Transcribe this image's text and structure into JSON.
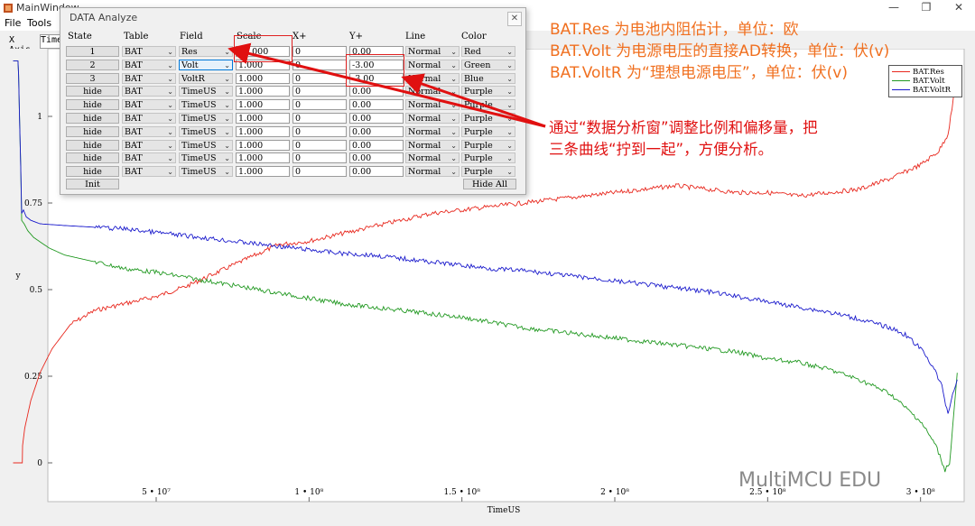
{
  "window": {
    "title": "MainWindow",
    "controls": [
      "—",
      "❐",
      "✕"
    ]
  },
  "menu": {
    "file": "File",
    "tools": "Tools"
  },
  "xaxis_bar": {
    "label": "X Axis",
    "value": "TimeU"
  },
  "dialog": {
    "title": "DATA Analyze",
    "close": "✕",
    "headers": {
      "state": "State",
      "table": "Table",
      "field": "Field",
      "scale": "Scale",
      "xplus": "X+",
      "yplus": "Y+",
      "line": "Line",
      "color": "Color"
    },
    "rows": [
      {
        "state": "1",
        "table": "BAT",
        "field": "Res",
        "scale": "10.000",
        "x": "0",
        "y": "0.00",
        "line": "Normal",
        "color": "Red"
      },
      {
        "state": "2",
        "table": "BAT",
        "field": "Volt",
        "scale": "1.000",
        "x": "0",
        "y": "-3.00",
        "line": "Normal",
        "color": "Green"
      },
      {
        "state": "3",
        "table": "BAT",
        "field": "VoltR",
        "scale": "1.000",
        "x": "0",
        "y": "-3.00",
        "line": "Normal",
        "color": "Blue"
      },
      {
        "state": "hide",
        "table": "BAT",
        "field": "TimeUS",
        "scale": "1.000",
        "x": "0",
        "y": "0.00",
        "line": "Normal",
        "color": "Purple"
      },
      {
        "state": "hide",
        "table": "BAT",
        "field": "TimeUS",
        "scale": "1.000",
        "x": "0",
        "y": "0.00",
        "line": "Normal",
        "color": "Purple"
      },
      {
        "state": "hide",
        "table": "BAT",
        "field": "TimeUS",
        "scale": "1.000",
        "x": "0",
        "y": "0.00",
        "line": "Normal",
        "color": "Purple"
      },
      {
        "state": "hide",
        "table": "BAT",
        "field": "TimeUS",
        "scale": "1.000",
        "x": "0",
        "y": "0.00",
        "line": "Normal",
        "color": "Purple"
      },
      {
        "state": "hide",
        "table": "BAT",
        "field": "TimeUS",
        "scale": "1.000",
        "x": "0",
        "y": "0.00",
        "line": "Normal",
        "color": "Purple"
      },
      {
        "state": "hide",
        "table": "BAT",
        "field": "TimeUS",
        "scale": "1.000",
        "x": "0",
        "y": "0.00",
        "line": "Normal",
        "color": "Purple"
      },
      {
        "state": "hide",
        "table": "BAT",
        "field": "TimeUS",
        "scale": "1.000",
        "x": "0",
        "y": "0.00",
        "line": "Normal",
        "color": "Purple"
      }
    ],
    "init_button": "Init",
    "hide_all_button": "Hide All"
  },
  "annotations": {
    "line1": "BAT.Res 为电池内阻估计，单位：欧",
    "line2": "BAT.Volt 为电源电压的直接AD转换，单位：伏(v)",
    "line3": "BAT.VoltR 为“理想电源电压”，单位：伏(v)",
    "note1": "通过“数据分析窗”调整比例和偏移量，把",
    "note2": "三条曲线“拧到一起”，方便分析。"
  },
  "watermark": "MultiMCU EDU",
  "colors": {
    "res": "#e8281e",
    "volt": "#229922",
    "voltr": "#1a1acc",
    "annotation": "#f07020",
    "arrow": "#e01010"
  },
  "chart_data": {
    "type": "line",
    "xlabel": "TimeUS",
    "ylabel": "y",
    "xlim": [
      0,
      318000000
    ],
    "ylim": [
      -0.15,
      1.22
    ],
    "x_ticks": [
      {
        "v": 50000000,
        "label": "5 • 10⁷"
      },
      {
        "v": 100000000,
        "label": "1 • 10⁸"
      },
      {
        "v": 150000000,
        "label": "1.5 • 10⁸"
      },
      {
        "v": 200000000,
        "label": "2 • 10⁸"
      },
      {
        "v": 250000000,
        "label": "2.5 • 10⁸"
      },
      {
        "v": 300000000,
        "label": "3 • 10⁸"
      }
    ],
    "y_ticks": [
      {
        "v": 0,
        "label": "0"
      },
      {
        "v": 0.25,
        "label": "0.25"
      },
      {
        "v": 0.5,
        "label": "0.5"
      },
      {
        "v": 0.75,
        "label": "0.75"
      },
      {
        "v": 1,
        "label": "1"
      }
    ],
    "legend": "top-right",
    "series": [
      {
        "name": "BAT.Res",
        "color": "#e8281e",
        "x": [
          3200000,
          6200000,
          6300000,
          7000000,
          9000000,
          12000000,
          16000000,
          22000000,
          30000000,
          40000000,
          50000000,
          60000000,
          70000000,
          80000000,
          90000000,
          100000000,
          110000000,
          120000000,
          130000000,
          140000000,
          150000000,
          160000000,
          170000000,
          180000000,
          190000000,
          200000000,
          210000000,
          220000000,
          230000000,
          240000000,
          250000000,
          260000000,
          270000000,
          280000000,
          290000000,
          300000000,
          306000000,
          309000000,
          312000000
        ],
        "y": [
          0,
          0,
          0.05,
          0.1,
          0.18,
          0.26,
          0.33,
          0.4,
          0.44,
          0.46,
          0.48,
          0.51,
          0.55,
          0.59,
          0.63,
          0.64,
          0.66,
          0.68,
          0.7,
          0.72,
          0.73,
          0.74,
          0.75,
          0.76,
          0.77,
          0.78,
          0.79,
          0.8,
          0.79,
          0.78,
          0.78,
          0.77,
          0.78,
          0.79,
          0.82,
          0.86,
          0.9,
          0.95,
          1.12
        ]
      },
      {
        "name": "BAT.Volt",
        "color": "#229922",
        "x": [
          3200000,
          4800000,
          5000000,
          5300000,
          5700000,
          6000000,
          6800000,
          8000000,
          10000000,
          15000000,
          20000000,
          30000000,
          40000000,
          50000000,
          60000000,
          70000000,
          80000000,
          90000000,
          100000000,
          110000000,
          120000000,
          130000000,
          140000000,
          150000000,
          160000000,
          170000000,
          180000000,
          190000000,
          200000000,
          210000000,
          220000000,
          230000000,
          240000000,
          250000000,
          260000000,
          270000000,
          280000000,
          290000000,
          300000000,
          305000000,
          308000000,
          309500000,
          310500000,
          312000000
        ],
        "y": [
          1.16,
          1.16,
          1.12,
          1.0,
          0.85,
          0.7,
          0.69,
          0.67,
          0.65,
          0.62,
          0.6,
          0.58,
          0.56,
          0.55,
          0.535,
          0.52,
          0.505,
          0.49,
          0.475,
          0.46,
          0.45,
          0.44,
          0.43,
          0.42,
          0.405,
          0.39,
          0.38,
          0.37,
          0.36,
          0.35,
          0.34,
          0.33,
          0.32,
          0.3,
          0.29,
          0.27,
          0.24,
          0.2,
          0.12,
          0.05,
          -0.02,
          0,
          0.1,
          0.26
        ]
      },
      {
        "name": "BAT.VoltR",
        "color": "#1a1acc",
        "x": [
          3200000,
          4800000,
          5000000,
          5300000,
          5700000,
          6000000,
          6600000,
          7500000,
          9000000,
          12000000,
          20000000,
          30000000,
          40000000,
          50000000,
          60000000,
          70000000,
          80000000,
          90000000,
          100000000,
          110000000,
          120000000,
          130000000,
          140000000,
          150000000,
          160000000,
          170000000,
          180000000,
          190000000,
          200000000,
          210000000,
          220000000,
          230000000,
          240000000,
          250000000,
          260000000,
          270000000,
          280000000,
          290000000,
          295000000,
          300000000,
          304000000,
          307000000,
          309000000,
          310500000,
          312000000
        ],
        "y": [
          1.16,
          1.16,
          1.12,
          1.0,
          0.85,
          0.72,
          0.73,
          0.71,
          0.7,
          0.69,
          0.685,
          0.68,
          0.675,
          0.665,
          0.655,
          0.645,
          0.635,
          0.625,
          0.615,
          0.605,
          0.6,
          0.59,
          0.58,
          0.57,
          0.56,
          0.555,
          0.545,
          0.535,
          0.525,
          0.515,
          0.505,
          0.495,
          0.48,
          0.465,
          0.45,
          0.435,
          0.415,
          0.39,
          0.37,
          0.33,
          0.28,
          0.22,
          0.14,
          0.2,
          0.24
        ]
      }
    ]
  }
}
